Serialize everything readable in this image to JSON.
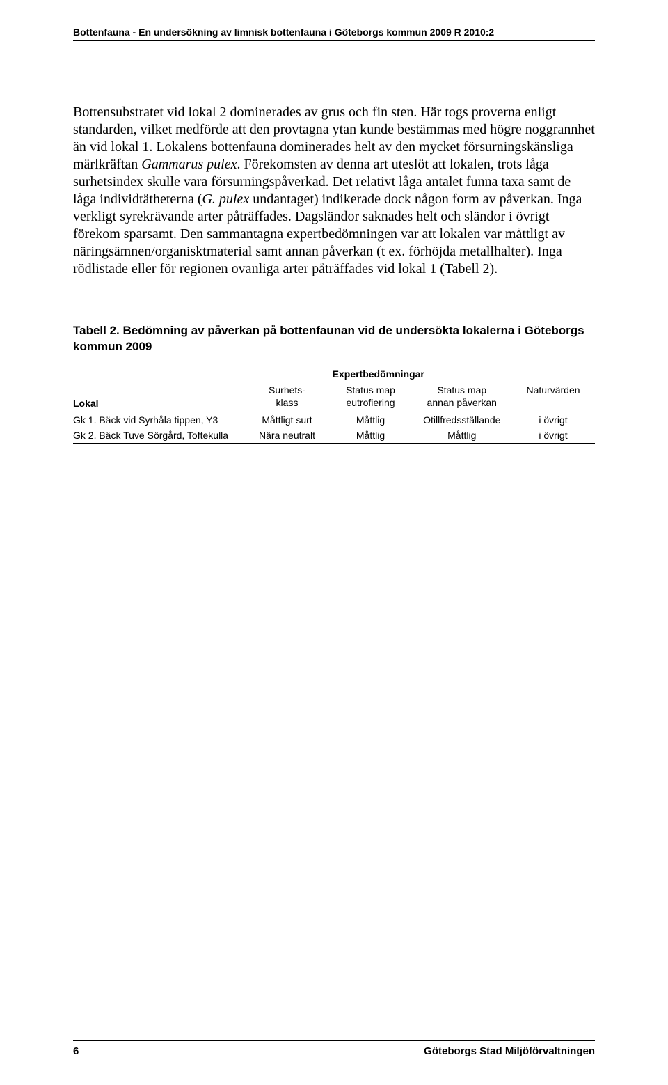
{
  "header": {
    "title": "Bottenfauna - En undersökning av limnisk bottenfauna i Göteborgs kommun 2009  R 2010:2"
  },
  "paragraph": {
    "p1": "Bottensubstratet vid lokal 2 dominerades av grus och fin sten. Här togs proverna enligt standarden, vilket medförde att den provtagna ytan kunde bestämmas med högre noggrannhet än vid lokal 1. Lokalens bottenfauna dominerades helt av den mycket försurningskänsliga märlkräftan ",
    "p1_it1": "Gammarus pulex",
    "p1b": ". Förekomsten av denna art uteslöt att lokalen, trots låga surhetsindex skulle vara försurningspåverkad. Det relativt låga antalet funna taxa samt de låga individtätheterna (",
    "p1_it2": "G. pulex",
    "p1c": " undantaget) indikerade dock någon form av påverkan. Inga verkligt syrekrävande arter påträffades. Dagsländor saknades helt och sländor i övrigt förekom sparsamt. Den sammantagna expertbedömningen var att lokalen var måttligt av näringsämnen/organisktmaterial samt annan påverkan (t ex. förhöjda metallhalter). Inga rödlistade eller för regionen ovanliga arter påträffades vid lokal 1 (Tabell 2)."
  },
  "table": {
    "caption": "Tabell 2. Bedömning av påverkan på bottenfaunan vid de undersökta lokalerna i Göteborgs kommun 2009",
    "superheader": "Expertbedömningar",
    "headers": {
      "lokal": "Lokal",
      "col1a": "Surhets-",
      "col1b": "klass",
      "col2a": "Status map",
      "col2b": "eutrofiering",
      "col3a": "Status map",
      "col3b": "annan påverkan",
      "col4": "Naturvärden"
    },
    "rows": [
      {
        "lokal": "Gk 1. Bäck vid Syrhåla tippen, Y3",
        "c1": "Måttligt surt",
        "c2": "Måttlig",
        "c3": "Otillfredsställande",
        "c4": "i övrigt"
      },
      {
        "lokal": "Gk 2. Bäck Tuve Sörgård, Toftekulla",
        "c1": "Nära neutralt",
        "c2": "Måttlig",
        "c3": "Måttlig",
        "c4": "i övrigt"
      }
    ]
  },
  "footer": {
    "page": "6",
    "org": "Göteborgs Stad Miljöförvaltningen"
  }
}
